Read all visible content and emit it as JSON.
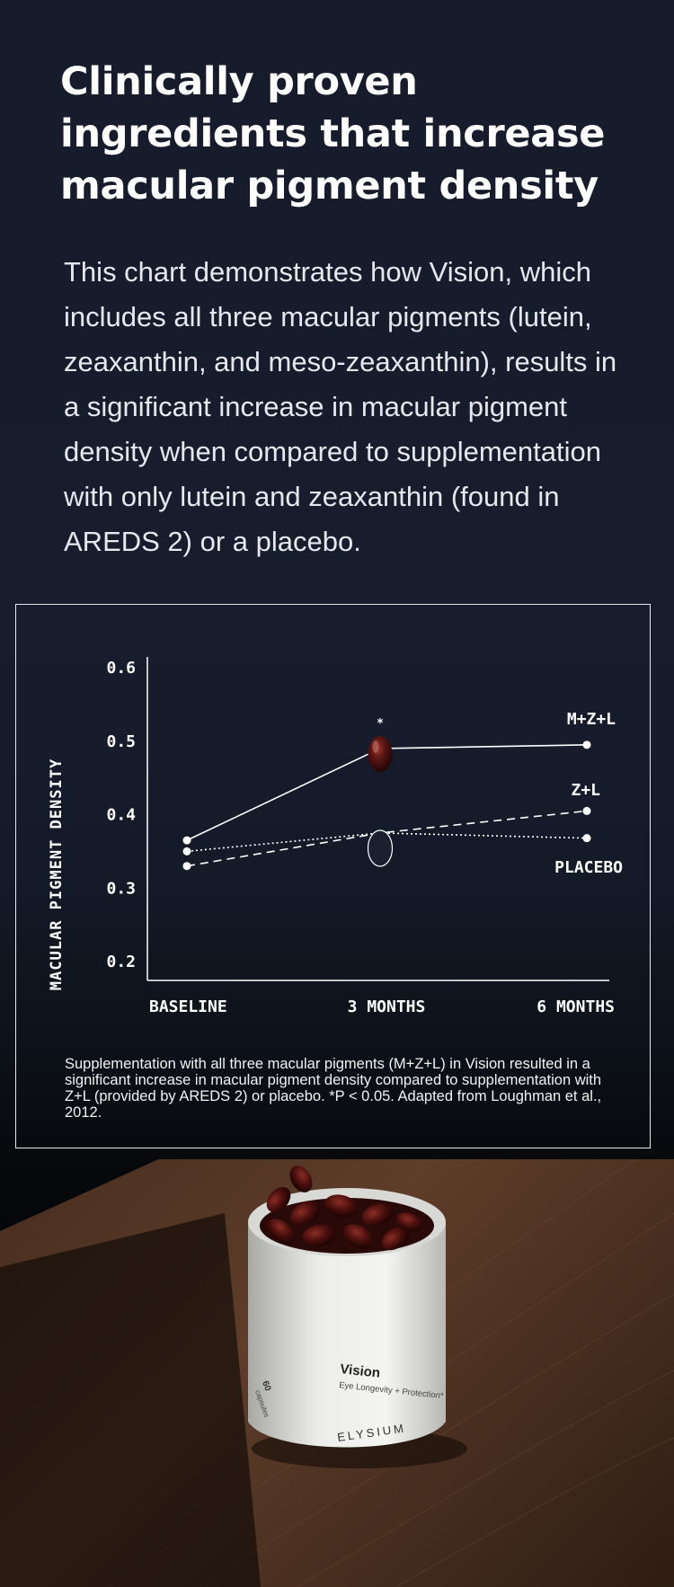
{
  "headline": "Clinically proven ingredients that increase macular pigment density",
  "intro": "This chart demonstrates how Vision, which includes all three macular pigments (lutein, zeaxanthin, and meso-zeaxanthin), results in a significant increase in macular pigment density when compared to supplementation with only lutein and zeaxanthin (found in AREDS 2) or a placebo.",
  "chart_data": {
    "type": "line",
    "title": "",
    "ylabel": "MACULAR PIGMENT DENSITY",
    "xlabel": "",
    "categories": [
      "BASELINE",
      "3 MONTHS",
      "6 MONTHS"
    ],
    "ylim": [
      0.2,
      0.6
    ],
    "yticks": [
      "0.6",
      "0.5",
      "0.4",
      "0.3",
      "0.2"
    ],
    "yticks_values": [
      0.6,
      0.5,
      0.4,
      0.3,
      0.2
    ],
    "series": [
      {
        "name": "M+Z+L",
        "values": [
          0.365,
          0.49,
          0.495
        ],
        "style": "solid"
      },
      {
        "name": "Z+L",
        "values": [
          0.33,
          0.375,
          0.405
        ],
        "style": "dashed"
      },
      {
        "name": "PLACEBO",
        "values": [
          0.35,
          0.375,
          0.368
        ],
        "style": "dotted"
      }
    ],
    "annotation": "*",
    "grid": false,
    "legend": "inline labels at right"
  },
  "footnote": "Supplementation with all three macular pigments (M+Z+L) in Vision resulted in a significant increase in macular pigment density compared to supplementation with Z+L (provided by AREDS 2) or placebo. *P < 0.05. Adapted from Loughman et al., 2012.",
  "product": {
    "name": "Vision",
    "subtitle": "Eye Longevity + Protection*",
    "brand": "ELYSIUM",
    "count": "60",
    "count_label": "capsules"
  },
  "colors": {
    "background": "#171d2d",
    "capsule": "#4a0e0e",
    "wood": "#5a3a26"
  }
}
